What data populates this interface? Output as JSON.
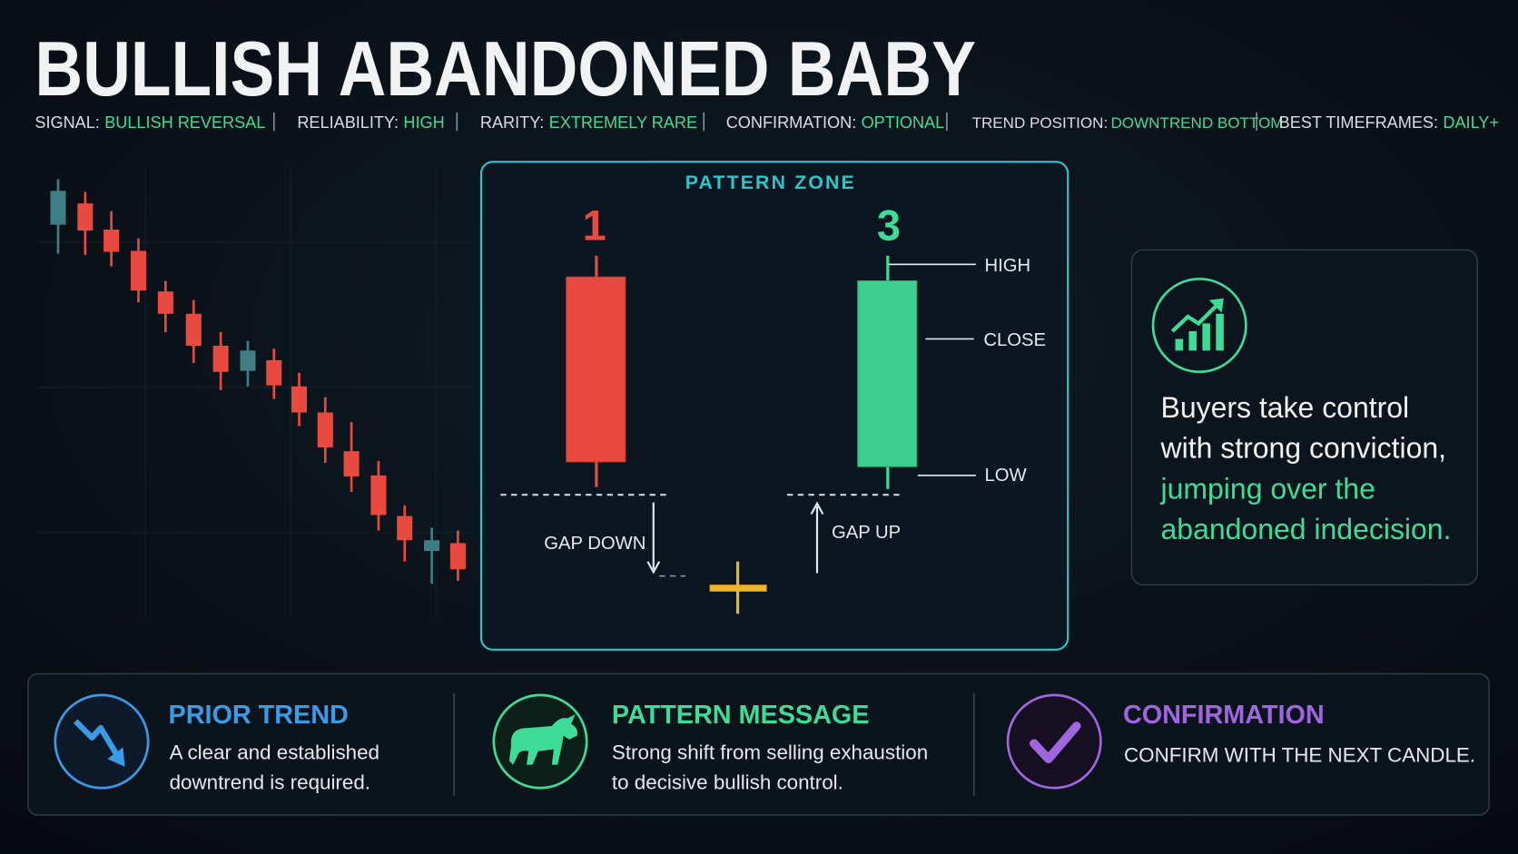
{
  "header": {
    "title": "BULLISH ABANDONED BABY",
    "meta": [
      {
        "label": "SIGNAL:",
        "value": "BULLISH REVERSAL"
      },
      {
        "label": "RELIABILITY:",
        "value": "HIGH"
      },
      {
        "label": "RARITY:",
        "value": "EXTREMELY RARE"
      },
      {
        "label": "CONFIRMATION:",
        "value": "OPTIONAL"
      },
      {
        "label": "TREND POSITION:",
        "value": "DOWNTREND BOTTOM"
      },
      {
        "label": "BEST TIMEFRAMES:",
        "value": "DAILY+"
      }
    ]
  },
  "pattern_zone": {
    "title": "PATTERN ZONE",
    "candle_1": "1",
    "candle_3": "3",
    "labels": {
      "high": "HIGH",
      "close": "CLOSE",
      "low": "LOW"
    },
    "gap_down": "GAP DOWN",
    "gap_up": "GAP UP"
  },
  "callout": {
    "lines": [
      "Buyers take control",
      "with strong conviction,"
    ],
    "highlight": [
      "jumping over the",
      "abandoned indecision."
    ]
  },
  "cards": [
    {
      "title": "PRIOR TREND",
      "lines": [
        "A clear and established",
        "downtrend is required."
      ]
    },
    {
      "title": "PATTERN MESSAGE",
      "lines": [
        "Strong shift from selling exhaustion",
        "to decisive bullish control."
      ]
    },
    {
      "title": "CONFIRMATION",
      "lines": [
        "CONFIRM WITH THE NEXT CANDLE."
      ]
    }
  ]
}
